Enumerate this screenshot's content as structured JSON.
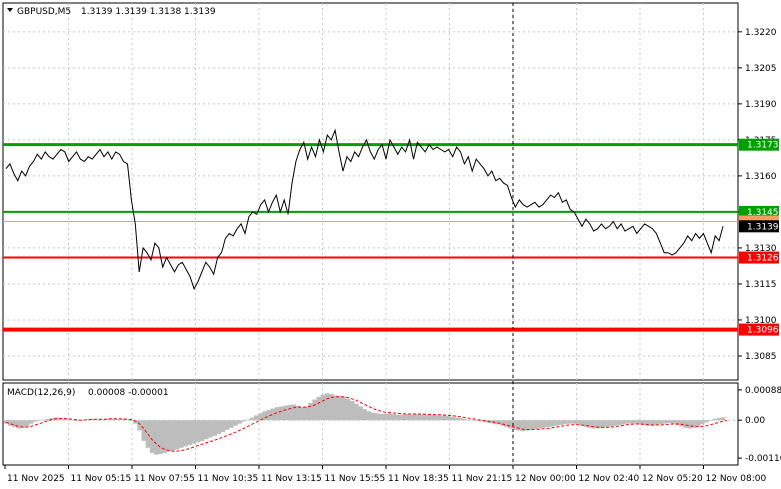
{
  "header": {
    "symbol": "GBPUSD,M5",
    "ohlc": "1.3139 1.3139 1.3138 1.3139",
    "macd_label": "MACD(12,26,9)",
    "macd_values": "0.00008 -0.00001"
  },
  "colors": {
    "price_line": "#000000",
    "green_level": "#00a000",
    "red_level": "#ff0000",
    "orange_level": "#f0a060",
    "histogram": "#bdbdbd",
    "signal": "#ff0000",
    "grid": "#c8c8c8",
    "current_price_box": "#000000"
  },
  "chart_data": [
    {
      "type": "line",
      "title": "GBPUSD,M5",
      "ylim": [
        1.3075,
        1.3232
      ],
      "grid": true,
      "y_ticks": [
        "1.3220",
        "1.3205",
        "1.3190",
        "1.3175",
        "1.3160",
        "1.3145",
        "1.3130",
        "1.3115",
        "1.3100",
        "1.3085"
      ],
      "x_ticks": [
        "11 Nov 2025",
        "11 Nov 05:15",
        "11 Nov 07:55",
        "11 Nov 10:35",
        "11 Nov 13:15",
        "11 Nov 15:55",
        "11 Nov 18:35",
        "11 Nov 21:15",
        "12 Nov 00:00",
        "12 Nov 02:40",
        "12 Nov 05:20",
        "12 Nov 08:00"
      ],
      "day_separator": "12 Nov 00:00",
      "levels": [
        {
          "value": 1.3173,
          "label": "1.3173",
          "color": "#00a000",
          "width": 3
        },
        {
          "value": 1.3145,
          "label": "1.3145",
          "color": "#00a000",
          "width": 2
        },
        {
          "value": 1.3141,
          "label": "",
          "color": "#f0a060",
          "width": 1
        },
        {
          "value": 1.3126,
          "label": "1.3126",
          "color": "#ff0000",
          "width": 2
        },
        {
          "value": 1.3096,
          "label": "1.3096",
          "color": "#ff0000",
          "width": 4
        }
      ],
      "current_price": "1.3139",
      "series": [
        {
          "values": [
            1.3163,
            1.3165,
            1.3161,
            1.3158,
            1.3162,
            1.316,
            1.3164,
            1.3166,
            1.3169,
            1.3167,
            1.317,
            1.3168,
            1.3167,
            1.3169,
            1.3171,
            1.317,
            1.3166,
            1.3168,
            1.317,
            1.3167,
            1.3166,
            1.3168,
            1.3167,
            1.3169,
            1.3171,
            1.3168,
            1.317,
            1.3167,
            1.317,
            1.3169,
            1.3166,
            1.3165,
            1.315,
            1.314,
            1.312,
            1.313,
            1.3128,
            1.3125,
            1.3132,
            1.313,
            1.3122,
            1.3126,
            1.3123,
            1.312,
            1.3123,
            1.3124,
            1.3121,
            1.3118,
            1.3113,
            1.3116,
            1.312,
            1.3124,
            1.3122,
            1.3119,
            1.3126,
            1.3128,
            1.3134,
            1.3136,
            1.3135,
            1.3138,
            1.314,
            1.3136,
            1.3143,
            1.3145,
            1.3144,
            1.3148,
            1.315,
            1.3145,
            1.3149,
            1.3152,
            1.3145,
            1.315,
            1.3144,
            1.3157,
            1.3166,
            1.3171,
            1.3174,
            1.3167,
            1.3172,
            1.3168,
            1.3175,
            1.317,
            1.3177,
            1.3175,
            1.3179,
            1.317,
            1.3162,
            1.3168,
            1.3166,
            1.317,
            1.3168,
            1.3172,
            1.3175,
            1.317,
            1.3167,
            1.3171,
            1.3173,
            1.3167,
            1.3175,
            1.3172,
            1.3169,
            1.3172,
            1.317,
            1.3175,
            1.3167,
            1.3174,
            1.3172,
            1.317,
            1.3173,
            1.3171,
            1.3172,
            1.3171,
            1.317,
            1.3171,
            1.3168,
            1.3172,
            1.317,
            1.3165,
            1.3168,
            1.3162,
            1.3167,
            1.3165,
            1.3163,
            1.316,
            1.3162,
            1.3158,
            1.3159,
            1.3157,
            1.3156,
            1.3151,
            1.3147,
            1.315,
            1.3148,
            1.3147,
            1.3148,
            1.3149,
            1.3147,
            1.3148,
            1.315,
            1.3152,
            1.3151,
            1.3153,
            1.3149,
            1.315,
            1.3146,
            1.3145,
            1.3142,
            1.3139,
            1.3142,
            1.314,
            1.3137,
            1.3138,
            1.314,
            1.3138,
            1.3139,
            1.3141,
            1.3138,
            1.314,
            1.3137,
            1.3138,
            1.3139,
            1.3136,
            1.3138,
            1.314,
            1.3139,
            1.3138,
            1.3136,
            1.3132,
            1.3128,
            1.3128,
            1.3127,
            1.3128,
            1.313,
            1.3132,
            1.3135,
            1.3133,
            1.3136,
            1.3134,
            1.3136,
            1.3132,
            1.3128,
            1.3135,
            1.3133,
            1.3139
          ]
        }
      ]
    },
    {
      "type": "bar",
      "title": "MACD(12,26,9) 0.00008 -0.00001",
      "ylim": [
        -0.0013,
        0.00108
      ],
      "y_ticks": [
        "0.00088",
        "0.00",
        "-0.00110"
      ],
      "series": [
        {
          "name": "MACD",
          "values": [
            -0.0001,
            -0.00016,
            -0.0002,
            -0.00024,
            -0.00022,
            -0.00018,
            -0.0001,
            -4e-05,
            0.0,
            2e-05,
            4e-05,
            6e-05,
            8e-05,
            6e-05,
            4e-05,
            2e-05,
            0.0,
            -2e-05,
            0.0,
            2e-05,
            3e-05,
            4e-05,
            3e-05,
            2e-05,
            4e-05,
            5e-05,
            4e-05,
            3e-05,
            4e-05,
            2e-05,
            -2e-05,
            -0.0001,
            -0.0003,
            -0.0006,
            -0.0008,
            -0.00095,
            -0.001,
            -0.00098,
            -0.00095,
            -0.0009,
            -0.00088,
            -0.00085,
            -0.0008,
            -0.00076,
            -0.00072,
            -0.00068,
            -0.00064,
            -0.0006,
            -0.00055,
            -0.0005,
            -0.00045,
            -0.0004,
            -0.00034,
            -0.00028,
            -0.00022,
            -0.00016,
            -0.0001,
            -4e-05,
            2e-05,
            8e-05,
            0.00014,
            0.0002,
            0.00026,
            0.0003,
            0.00034,
            0.00038,
            0.0004,
            0.00042,
            0.00044,
            0.00046,
            0.00042,
            0.00038,
            0.0004,
            0.0005,
            0.0006,
            0.00068,
            0.00074,
            0.00078,
            0.00076,
            0.00072,
            0.0007,
            0.00068,
            0.00062,
            0.00056,
            0.00048,
            0.0004,
            0.00032,
            0.00026,
            0.00022,
            0.0002,
            0.00018,
            0.00018,
            0.0002,
            0.00018,
            0.00016,
            0.00016,
            0.00018,
            0.00016,
            0.00018,
            0.00018,
            0.00017,
            0.00016,
            0.00016,
            0.00015,
            0.00014,
            0.00014,
            0.00012,
            0.0001,
            8e-05,
            6e-05,
            4e-05,
            2e-05,
            0.0,
            -2e-05,
            -4e-05,
            -6e-05,
            -8e-05,
            -0.0001,
            -0.00012,
            -0.00016,
            -0.0002,
            -0.00024,
            -0.00028,
            -0.0003,
            -0.00032,
            -0.0003,
            -0.00028,
            -0.00026,
            -0.00024,
            -0.00022,
            -0.0002,
            -0.00018,
            -0.00016,
            -0.00014,
            -0.00012,
            -0.0001,
            -0.0001,
            -0.00012,
            -0.00016,
            -0.0002,
            -0.00022,
            -0.00024,
            -0.00024,
            -0.00022,
            -0.0002,
            -0.00018,
            -0.00016,
            -0.00014,
            -0.00012,
            -0.0001,
            -0.0001,
            -0.0001,
            -0.00012,
            -0.00014,
            -0.00016,
            -0.00016,
            -0.00014,
            -0.00012,
            -0.0001,
            -8e-05,
            -0.0001,
            -0.00014,
            -0.00018,
            -0.00022,
            -0.00024,
            -0.00022,
            -0.00018,
            -0.00012,
            -6e-05,
            0.0,
            4e-05,
            6e-05,
            8e-05
          ]
        },
        {
          "name": "Signal",
          "values": [
            -6e-05,
            -0.0001,
            -0.00014,
            -0.00018,
            -0.0002,
            -0.0002,
            -0.00018,
            -0.00014,
            -0.0001,
            -6e-05,
            -2e-05,
            2e-05,
            4e-05,
            5e-05,
            5e-05,
            4e-05,
            3e-05,
            1e-05,
            0.0,
            1e-05,
            2e-05,
            3e-05,
            3e-05,
            3e-05,
            3e-05,
            4e-05,
            4e-05,
            4e-05,
            4e-05,
            3e-05,
            2e-05,
            -2e-05,
            -0.0001,
            -0.00024,
            -0.0004,
            -0.00056,
            -0.00068,
            -0.00078,
            -0.00084,
            -0.00088,
            -0.0009,
            -0.0009,
            -0.00088,
            -0.00086,
            -0.00082,
            -0.00078,
            -0.00074,
            -0.0007,
            -0.00066,
            -0.00062,
            -0.00058,
            -0.00054,
            -0.0005,
            -0.00045,
            -0.0004,
            -0.00035,
            -0.0003,
            -0.00024,
            -0.00018,
            -0.00012,
            -6e-05,
            0.0,
            6e-05,
            0.00012,
            0.00017,
            0.00022,
            0.00026,
            0.0003,
            0.00033,
            0.00036,
            0.00038,
            0.00038,
            0.00038,
            0.0004,
            0.00044,
            0.0005,
            0.00056,
            0.00062,
            0.00066,
            0.00068,
            0.00068,
            0.00068,
            0.00066,
            0.00062,
            0.00058,
            0.00052,
            0.00046,
            0.0004,
            0.00034,
            0.0003,
            0.00026,
            0.00023,
            0.00022,
            0.00021,
            0.0002,
            0.00019,
            0.00018,
            0.00018,
            0.00018,
            0.00018,
            0.00018,
            0.00017,
            0.00017,
            0.00016,
            0.00016,
            0.00015,
            0.00014,
            0.00013,
            0.00012,
            0.0001,
            8e-05,
            6e-05,
            4e-05,
            2e-05,
            0.0,
            -2e-05,
            -4e-05,
            -6e-05,
            -8e-05,
            -0.00011,
            -0.00014,
            -0.00017,
            -0.0002,
            -0.00023,
            -0.00026,
            -0.00027,
            -0.00027,
            -0.00027,
            -0.00026,
            -0.00025,
            -0.00024,
            -0.00022,
            -0.0002,
            -0.00018,
            -0.00016,
            -0.00014,
            -0.00013,
            -0.00013,
            -0.00014,
            -0.00015,
            -0.00017,
            -0.00019,
            -0.0002,
            -0.00021,
            -0.00021,
            -0.0002,
            -0.00019,
            -0.00017,
            -0.00015,
            -0.00013,
            -0.00012,
            -0.00011,
            -0.00011,
            -0.00012,
            -0.00013,
            -0.00014,
            -0.00014,
            -0.00014,
            -0.00013,
            -0.00012,
            -0.00011,
            -0.00011,
            -0.00012,
            -0.00014,
            -0.00016,
            -0.00018,
            -0.00019,
            -0.00018,
            -0.00016,
            -0.00013,
            -0.0001,
            -6e-05,
            -3e-05,
            -1e-05
          ]
        }
      ]
    }
  ]
}
